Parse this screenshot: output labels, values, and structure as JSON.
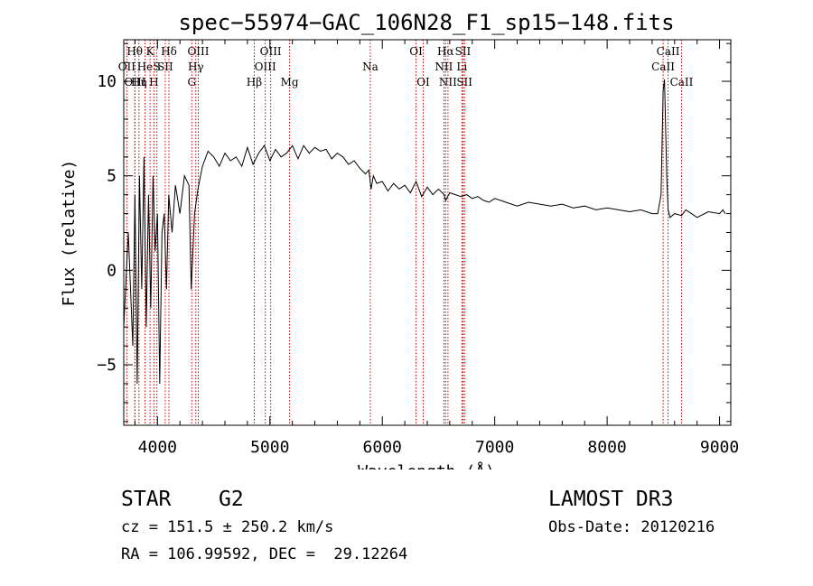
{
  "chart_data": {
    "type": "line",
    "title": "spec−55974−GAC_106N28_F1_sp15−148.fits",
    "xlabel": "Wavelength (Å)",
    "ylabel": "Flux (relative)",
    "xlim": [
      3700,
      9100
    ],
    "ylim": [
      -8.2,
      12.2
    ],
    "x_ticks": [
      4000,
      5000,
      6000,
      7000,
      8000,
      9000
    ],
    "x_tick_labels": [
      "4000",
      "5000",
      "6000",
      "7000",
      "8000",
      "9000"
    ],
    "y_ticks": [
      -5,
      0,
      5,
      10
    ],
    "y_tick_labels": [
      "−5",
      "0",
      "5",
      "10"
    ],
    "line_color": "#000000",
    "marker_color": "#cc0000",
    "series": [
      {
        "name": "flux",
        "x": [
          3700,
          3740,
          3780,
          3800,
          3820,
          3840,
          3860,
          3880,
          3900,
          3920,
          3940,
          3960,
          3980,
          4000,
          4020,
          4040,
          4060,
          4080,
          4100,
          4130,
          4160,
          4200,
          4240,
          4280,
          4300,
          4330,
          4360,
          4400,
          4450,
          4500,
          4550,
          4600,
          4650,
          4700,
          4750,
          4800,
          4850,
          4900,
          4950,
          5000,
          5050,
          5100,
          5150,
          5200,
          5250,
          5300,
          5350,
          5400,
          5450,
          5500,
          5550,
          5600,
          5650,
          5700,
          5750,
          5800,
          5850,
          5880,
          5900,
          5920,
          5950,
          6000,
          6050,
          6100,
          6150,
          6200,
          6250,
          6300,
          6350,
          6400,
          6450,
          6500,
          6550,
          6563,
          6600,
          6650,
          6700,
          6750,
          6800,
          6850,
          6900,
          6950,
          7000,
          7100,
          7200,
          7300,
          7400,
          7500,
          7600,
          7700,
          7800,
          7900,
          8000,
          8100,
          8200,
          8300,
          8400,
          8450,
          8480,
          8498,
          8510,
          8530,
          8542,
          8560,
          8600,
          8662,
          8700,
          8800,
          8900,
          9000,
          9030,
          9050
        ],
        "y": [
          -3,
          2,
          -4,
          4,
          -6,
          5,
          -1,
          6,
          -3,
          4,
          -2,
          5,
          1,
          3,
          -6,
          2,
          3,
          -1,
          4,
          2,
          4.5,
          3,
          5,
          4.5,
          -1,
          3,
          4.3,
          5.5,
          6.3,
          6.0,
          5.5,
          6.2,
          5.8,
          6.0,
          5.5,
          6.5,
          5.6,
          6.2,
          6.6,
          5.8,
          6.4,
          6.0,
          6.2,
          6.6,
          5.9,
          6.6,
          6.2,
          6.5,
          6.3,
          6.4,
          5.9,
          6.2,
          6.0,
          5.6,
          5.8,
          5.4,
          5.1,
          5.3,
          4.3,
          5.0,
          4.6,
          4.7,
          4.2,
          4.6,
          4.3,
          4.5,
          4.1,
          4.7,
          3.9,
          4.4,
          4.0,
          4.3,
          4.0,
          3.7,
          4.1,
          4.0,
          3.9,
          4.0,
          3.8,
          3.9,
          3.7,
          3.6,
          3.8,
          3.6,
          3.4,
          3.6,
          3.5,
          3.4,
          3.5,
          3.3,
          3.4,
          3.2,
          3.3,
          3.2,
          3.1,
          3.2,
          3.0,
          3.0,
          4.0,
          9.5,
          10.1,
          5.0,
          3.2,
          2.8,
          3.0,
          2.9,
          3.2,
          2.8,
          3.1,
          3.0,
          3.2,
          3.0
        ]
      }
    ],
    "spectral_lines": [
      {
        "label": "Hθ",
        "x": 3798,
        "row": 0
      },
      {
        "label": "OII",
        "x": 3727,
        "row": 1
      },
      {
        "label": "OIII",
        "x": 3800,
        "row": 2
      },
      {
        "label": "Hη",
        "x": 3835,
        "row": 2
      },
      {
        "label": "He",
        "x": 3889,
        "row": 1
      },
      {
        "label": "K",
        "x": 3934,
        "row": 0
      },
      {
        "label": "H",
        "x": 3968,
        "row": 2
      },
      {
        "label": "S",
        "x": 3995,
        "row": 1
      },
      {
        "label": "Hδ",
        "x": 4102,
        "row": 0
      },
      {
        "label": "SII",
        "x": 4069,
        "row": 1
      },
      {
        "label": "OIII",
        "x": 4363,
        "row": 0
      },
      {
        "label": "Hγ",
        "x": 4341,
        "row": 1
      },
      {
        "label": "G",
        "x": 4305,
        "row": 2
      },
      {
        "label": "Hβ",
        "x": 4861,
        "row": 2
      },
      {
        "label": "OIII",
        "x": 5007,
        "row": 0
      },
      {
        "label": "OIII",
        "x": 4959,
        "row": 1
      },
      {
        "label": "Mg",
        "x": 5175,
        "row": 2
      },
      {
        "label": "Na",
        "x": 5893,
        "row": 1
      },
      {
        "label": "OI",
        "x": 6300,
        "row": 0
      },
      {
        "label": "OI",
        "x": 6364,
        "row": 2
      },
      {
        "label": "Hα",
        "x": 6563,
        "row": 0
      },
      {
        "label": "NII",
        "x": 6548,
        "row": 1
      },
      {
        "label": "NII",
        "x": 6584,
        "row": 2
      },
      {
        "label": "SII",
        "x": 6717,
        "row": 0
      },
      {
        "label": "Li",
        "x": 6708,
        "row": 1
      },
      {
        "label": "SII",
        "x": 6731,
        "row": 2
      },
      {
        "label": "CaII",
        "x": 8542,
        "row": 0
      },
      {
        "label": "CaII",
        "x": 8498,
        "row": 1
      },
      {
        "label": "CaII",
        "x": 8662,
        "row": 2
      }
    ]
  },
  "info": {
    "object_class": "STAR",
    "subclass": "G2",
    "survey": "LAMOST DR3",
    "redshift_line": "cz = 151.5 ± 250.2 km/s",
    "obs_date": "Obs-Date: 20120216",
    "coords": "RA = 106.99592, DEC =  29.12264"
  }
}
